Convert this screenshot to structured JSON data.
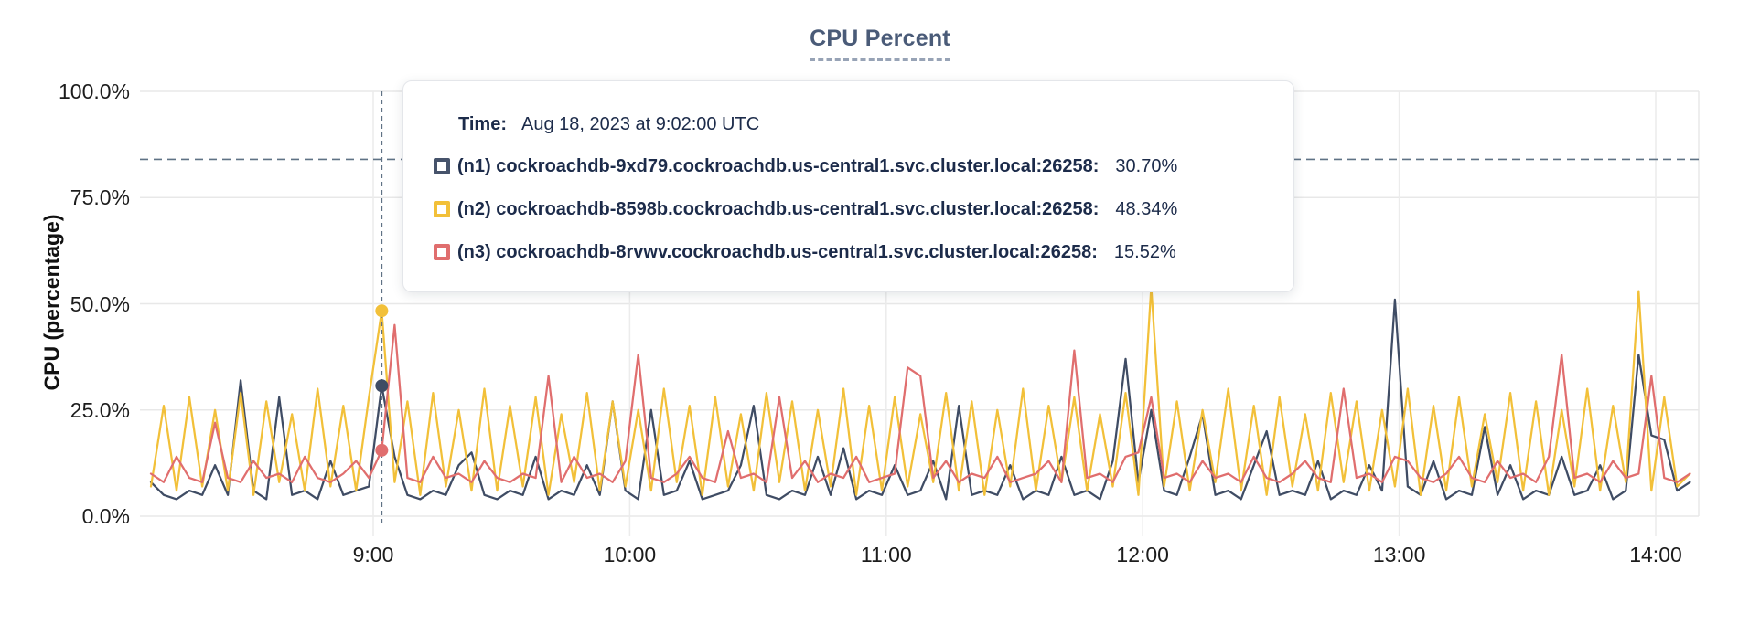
{
  "header": {
    "title": "CPU Percent"
  },
  "tooltip": {
    "time_label": "Time:",
    "time_value": "Aug 18, 2023 at 9:02:00 UTC",
    "series": [
      {
        "id": "n1",
        "label": "(n1) cockroachdb-9xd79.cockroachdb.us-central1.svc.cluster.local:26258:",
        "value": "30.70%",
        "color": "#46536b"
      },
      {
        "id": "n2",
        "label": "(n2) cockroachdb-8598b.cockroachdb.us-central1.svc.cluster.local:26258:",
        "value": "48.34%",
        "color": "#f2c039"
      },
      {
        "id": "n3",
        "label": "(n3) cockroachdb-8rvwv.cockroachdb.us-central1.svc.cluster.local:26258:",
        "value": "15.52%",
        "color": "#e06e6e"
      }
    ]
  },
  "chart_data": {
    "type": "line",
    "title": "CPU Percent",
    "xlabel": "",
    "ylabel": "CPU (percentage)",
    "ylim": [
      0,
      100
    ],
    "yticks": [
      0,
      25,
      50,
      75,
      100
    ],
    "ytick_labels": [
      "0.0%",
      "25.0%",
      "50.0%",
      "75.0%",
      "100.0%"
    ],
    "grid": true,
    "legend_position": "tooltip-overlay",
    "x_is_time": true,
    "x_start_min": 488,
    "x_step_min": 3,
    "x_domain_min": [
      485,
      850
    ],
    "xticks": [
      {
        "min": 540,
        "label": "9:00"
      },
      {
        "min": 600,
        "label": "10:00"
      },
      {
        "min": 660,
        "label": "11:00"
      },
      {
        "min": 720,
        "label": "12:00"
      },
      {
        "min": 780,
        "label": "13:00"
      },
      {
        "min": 840,
        "label": "14:00"
      }
    ],
    "threshold_percent": 84,
    "hover": {
      "time_min": 542,
      "time_label": "9:02:00 UTC",
      "values": [
        30.7,
        48.34,
        15.52
      ]
    },
    "series": [
      {
        "name": "n1",
        "color": "#3f4c64",
        "values": [
          8,
          5,
          4,
          6,
          5,
          12,
          5,
          32,
          6,
          4,
          28,
          5,
          6,
          4,
          13,
          5,
          6,
          7,
          30.7,
          14,
          5,
          4,
          6,
          5,
          12,
          15,
          5,
          4,
          6,
          5,
          14,
          4,
          6,
          5,
          12,
          5,
          27,
          6,
          4,
          25,
          5,
          6,
          13,
          4,
          5,
          6,
          12,
          26,
          5,
          4,
          6,
          5,
          14,
          5,
          16,
          4,
          6,
          5,
          12,
          5,
          6,
          13,
          4,
          26,
          5,
          6,
          5,
          12,
          4,
          6,
          5,
          14,
          5,
          6,
          4,
          13,
          37,
          8,
          25,
          6,
          5,
          14,
          24,
          5,
          6,
          4,
          12,
          20,
          5,
          6,
          5,
          13,
          4,
          6,
          5,
          12,
          6,
          51,
          7,
          5,
          13,
          4,
          6,
          5,
          21,
          5,
          12,
          4,
          6,
          5,
          14,
          5,
          6,
          12,
          4,
          6,
          38,
          19,
          18,
          6,
          8
        ]
      },
      {
        "name": "n2",
        "color": "#f2c039",
        "values": [
          7,
          26,
          6,
          28,
          7,
          25,
          6,
          29,
          5,
          27,
          8,
          24,
          6,
          30,
          7,
          26,
          6,
          28,
          48.34,
          8,
          27,
          5,
          29,
          7,
          25,
          6,
          30,
          6,
          26,
          7,
          28,
          5,
          24,
          8,
          29,
          6,
          27,
          7,
          25,
          6,
          30,
          8,
          26,
          5,
          28,
          7,
          24,
          6,
          29,
          8,
          27,
          6,
          25,
          7,
          30,
          5,
          26,
          6,
          28,
          7,
          24,
          8,
          29,
          6,
          27,
          5,
          25,
          7,
          30,
          6,
          26,
          8,
          28,
          6,
          24,
          7,
          29,
          5,
          54,
          7,
          27,
          6,
          25,
          8,
          30,
          6,
          26,
          5,
          28,
          7,
          24,
          6,
          29,
          8,
          27,
          6,
          25,
          7,
          30,
          5,
          26,
          6,
          28,
          7,
          24,
          8,
          29,
          6,
          27,
          5,
          25,
          7,
          30,
          6,
          26,
          8,
          53,
          6,
          28,
          7,
          10
        ]
      },
      {
        "name": "n3",
        "color": "#e06e6e",
        "values": [
          10,
          8,
          14,
          9,
          8,
          22,
          9,
          8,
          13,
          9,
          10,
          8,
          14,
          9,
          8,
          10,
          13,
          9,
          15.52,
          45,
          9,
          8,
          14,
          9,
          10,
          8,
          13,
          9,
          8,
          10,
          9,
          33,
          8,
          14,
          9,
          10,
          8,
          13,
          38,
          9,
          8,
          10,
          14,
          9,
          8,
          20,
          9,
          10,
          8,
          28,
          9,
          13,
          8,
          10,
          9,
          14,
          8,
          9,
          10,
          35,
          33,
          9,
          13,
          8,
          10,
          9,
          14,
          8,
          9,
          10,
          13,
          8,
          39,
          9,
          10,
          8,
          14,
          15,
          28,
          9,
          10,
          8,
          13,
          9,
          10,
          8,
          14,
          9,
          8,
          10,
          13,
          9,
          8,
          30,
          9,
          10,
          8,
          14,
          13,
          9,
          8,
          10,
          14,
          9,
          8,
          13,
          9,
          10,
          8,
          14,
          38,
          9,
          10,
          8,
          13,
          9,
          10,
          33,
          9,
          8,
          10
        ]
      }
    ]
  }
}
